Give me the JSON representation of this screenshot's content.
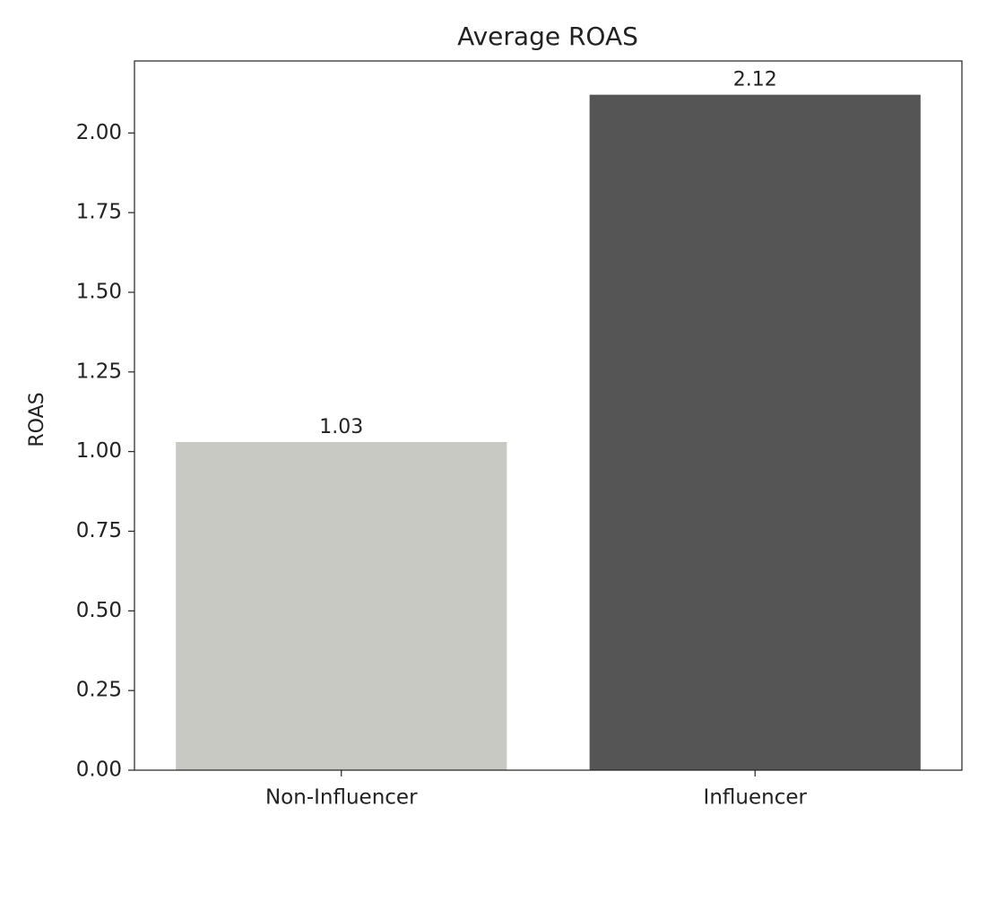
{
  "chart_data": {
    "type": "bar",
    "title": "Average ROAS",
    "y_label": "ROAS",
    "categories": [
      "Non-Influencer",
      "Influencer"
    ],
    "values": [
      1.03,
      2.12
    ],
    "colors": [
      "#c8c9c3",
      "#555555"
    ],
    "ylim": [
      0,
      2.226
    ],
    "yticks": [
      {
        "value": 0,
        "label": "0.00"
      },
      {
        "value": 0.25,
        "label": "0.25"
      },
      {
        "value": 0.5,
        "label": "0.50"
      },
      {
        "value": 0.75,
        "label": "0.75"
      },
      {
        "value": 1,
        "label": "1.00"
      },
      {
        "value": 1.25,
        "label": "1.25"
      },
      {
        "value": 1.5,
        "label": "1.50"
      },
      {
        "value": 1.75,
        "label": "1.75"
      },
      {
        "value": 2,
        "label": "2.00"
      }
    ],
    "grid": false
  }
}
